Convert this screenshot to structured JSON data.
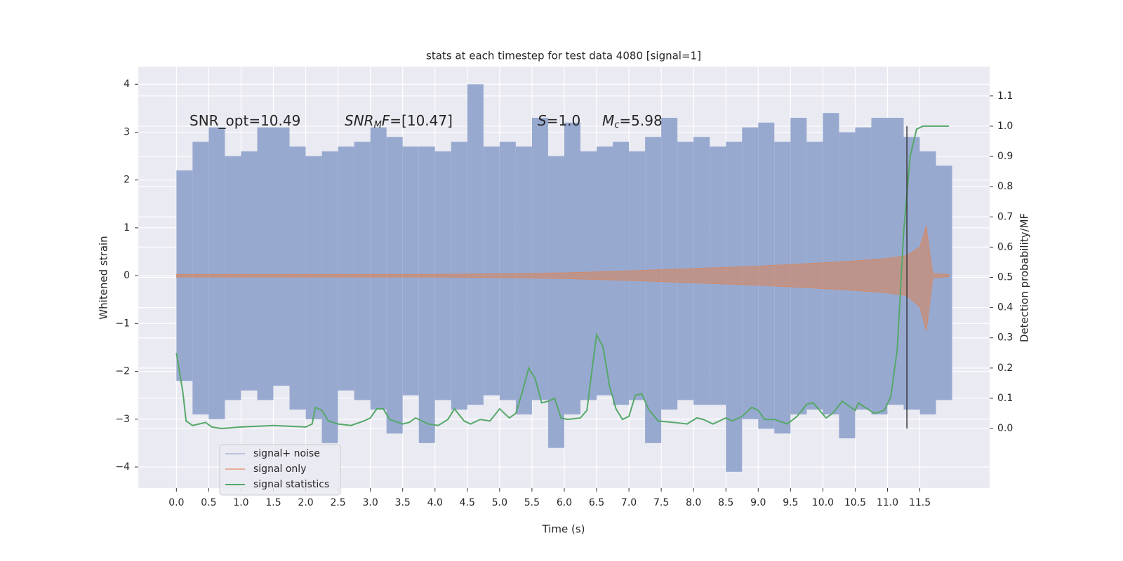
{
  "chart_data": {
    "type": "line",
    "title": "stats at each timestep for test data 4080 [signal=1]",
    "xlabel": "Time (s)",
    "ylabel": "Whitened strain",
    "y2label": "Detection probability/MF",
    "xlim": [
      -0.59,
      12.58
    ],
    "ylim": [
      -4.44,
      4.37
    ],
    "y2lim": [
      -0.197,
      1.197
    ],
    "xticks": [
      {
        "value": 0,
        "label": "0.0"
      },
      0.5,
      {
        "value": 1,
        "label": "1.0"
      },
      1.5,
      {
        "value": 2,
        "label": "2.0"
      },
      2.5,
      {
        "value": 3,
        "label": "3.0"
      },
      3.5,
      {
        "value": 4,
        "label": "4.0"
      },
      4.5,
      {
        "value": 5,
        "label": "5.0"
      },
      5.5,
      {
        "value": 6,
        "label": "6.0"
      },
      6.5,
      {
        "value": 7,
        "label": "7.0"
      },
      7.5,
      {
        "value": 8,
        "label": "8.0"
      },
      8.5,
      {
        "value": 9,
        "label": "9.0"
      },
      9.5,
      {
        "value": 10,
        "label": "10.0"
      },
      10.5,
      {
        "value": 11,
        "label": "11.0"
      },
      11.5
    ],
    "yticks": [
      {
        "value": -4,
        "label": "−4"
      },
      {
        "value": -3,
        "label": "−3"
      },
      {
        "value": -2,
        "label": "−2"
      },
      {
        "value": -1,
        "label": "−1"
      },
      0,
      1,
      2,
      3,
      4
    ],
    "y2ticks": [
      {
        "value": 0,
        "label": "0.0"
      },
      0.1,
      0.2,
      0.3,
      0.4,
      0.5,
      0.6,
      0.7,
      0.8,
      0.9,
      {
        "value": 1,
        "label": "1.0"
      },
      1.1
    ],
    "grid": true,
    "legend": "lower left",
    "series": [
      {
        "name": "signal+ noise",
        "kind": "band",
        "color": "#98a9d0",
        "x": [
          0.125,
          0.375,
          0.625,
          0.875,
          1.125,
          1.375,
          1.625,
          1.875,
          2.125,
          2.375,
          2.625,
          2.875,
          3.125,
          3.375,
          3.625,
          3.875,
          4.125,
          4.375,
          4.625,
          4.875,
          5.125,
          5.375,
          5.625,
          5.875,
          6.125,
          6.375,
          6.625,
          6.875,
          7.125,
          7.375,
          7.625,
          7.875,
          8.125,
          8.375,
          8.625,
          8.875,
          9.125,
          9.375,
          9.625,
          9.875,
          10.125,
          10.375,
          10.625,
          10.875,
          11.125,
          11.375,
          11.625,
          11.875
        ],
        "upper": [
          2.2,
          2.8,
          3.1,
          2.5,
          2.6,
          3.1,
          3.1,
          2.7,
          2.5,
          2.6,
          2.7,
          2.8,
          3.1,
          2.9,
          2.7,
          2.7,
          2.6,
          2.8,
          4.0,
          2.7,
          2.8,
          2.7,
          3.3,
          2.5,
          3.2,
          2.6,
          2.7,
          2.8,
          2.6,
          2.9,
          3.3,
          2.8,
          2.9,
          2.7,
          2.8,
          3.1,
          3.2,
          2.8,
          3.3,
          2.8,
          3.4,
          3.0,
          3.1,
          3.3,
          3.3,
          2.9,
          2.6,
          2.3
        ],
        "lower": [
          -2.2,
          -2.9,
          -3.0,
          -2.6,
          -2.4,
          -2.6,
          -2.3,
          -2.8,
          -3.0,
          -3.5,
          -2.4,
          -2.6,
          -2.8,
          -3.3,
          -2.5,
          -3.5,
          -2.6,
          -2.8,
          -2.7,
          -2.5,
          -2.6,
          -2.9,
          -2.6,
          -3.6,
          -2.9,
          -2.6,
          -2.5,
          -2.7,
          -2.6,
          -3.5,
          -2.8,
          -2.6,
          -2.7,
          -2.7,
          -4.1,
          -3.0,
          -3.2,
          -3.3,
          -2.9,
          -2.8,
          -2.9,
          -3.4,
          -2.8,
          -2.9,
          -2.7,
          -2.8,
          -2.9,
          -2.6
        ]
      },
      {
        "name": "signal only",
        "kind": "area",
        "color": "#dd8452",
        "x": [
          0,
          1,
          2,
          3,
          4,
          5,
          6,
          7,
          8,
          9,
          10,
          10.5,
          11,
          11.3,
          11.5,
          11.6,
          11.65,
          11.7,
          11.95
        ],
        "upper": [
          0.03,
          0.03,
          0.03,
          0.03,
          0.03,
          0.04,
          0.06,
          0.1,
          0.15,
          0.2,
          0.27,
          0.31,
          0.36,
          0.42,
          0.6,
          1.05,
          0.5,
          0.05,
          0.02
        ],
        "lower": [
          -0.03,
          -0.03,
          -0.03,
          -0.03,
          -0.03,
          -0.04,
          -0.06,
          -0.1,
          -0.15,
          -0.2,
          -0.27,
          -0.31,
          -0.36,
          -0.42,
          -0.65,
          -1.15,
          -0.6,
          -0.05,
          -0.02
        ]
      },
      {
        "name": "signal statistics",
        "kind": "line",
        "axis": "y2",
        "color": "#55a868",
        "x": [
          0,
          0.1,
          0.15,
          0.25,
          0.35,
          0.45,
          0.55,
          0.7,
          1.0,
          1.5,
          2.0,
          2.1,
          2.15,
          2.25,
          2.35,
          2.5,
          2.7,
          2.9,
          3.0,
          3.1,
          3.2,
          3.3,
          3.5,
          3.6,
          3.7,
          3.9,
          4.05,
          4.2,
          4.3,
          4.45,
          4.55,
          4.7,
          4.85,
          5.0,
          5.15,
          5.25,
          5.35,
          5.45,
          5.55,
          5.65,
          5.75,
          5.85,
          5.95,
          6.05,
          6.25,
          6.35,
          6.45,
          6.5,
          6.6,
          6.7,
          6.8,
          6.9,
          7.0,
          7.1,
          7.2,
          7.3,
          7.45,
          7.7,
          7.9,
          8.05,
          8.15,
          8.3,
          8.5,
          8.6,
          8.75,
          8.9,
          9.0,
          9.1,
          9.25,
          9.45,
          9.6,
          9.75,
          9.85,
          10.05,
          10.15,
          10.3,
          10.5,
          10.55,
          10.65,
          10.8,
          10.95,
          11.05,
          11.15,
          11.25,
          11.35,
          11.45,
          11.55,
          11.95
        ],
        "values": [
          0.25,
          0.12,
          0.025,
          0.01,
          0.015,
          0.02,
          0.005,
          0.0,
          0.005,
          0.01,
          0.005,
          0.015,
          0.07,
          0.06,
          0.025,
          0.015,
          0.01,
          0.025,
          0.035,
          0.065,
          0.065,
          0.03,
          0.015,
          0.02,
          0.035,
          0.015,
          0.01,
          0.03,
          0.065,
          0.025,
          0.015,
          0.03,
          0.025,
          0.065,
          0.035,
          0.05,
          0.12,
          0.2,
          0.165,
          0.085,
          0.09,
          0.1,
          0.035,
          0.03,
          0.035,
          0.06,
          0.23,
          0.31,
          0.27,
          0.14,
          0.065,
          0.03,
          0.04,
          0.11,
          0.115,
          0.065,
          0.025,
          0.02,
          0.015,
          0.035,
          0.03,
          0.015,
          0.035,
          0.025,
          0.04,
          0.07,
          0.06,
          0.03,
          0.03,
          0.015,
          0.04,
          0.08,
          0.085,
          0.035,
          0.05,
          0.09,
          0.06,
          0.085,
          0.07,
          0.05,
          0.06,
          0.105,
          0.26,
          0.65,
          0.9,
          0.99,
          1.0,
          1.0
        ]
      }
    ],
    "vlines": [
      {
        "x": 11.3,
        "ymin": 0,
        "ymax": 1,
        "axis": "y2",
        "color": "#333333"
      }
    ],
    "annotations": [
      [
        {
          "text": "SNR_opt=10.49"
        }
      ],
      [
        {
          "text": "SNR",
          "style": "italic"
        },
        {
          "text": "M",
          "style": "sub"
        },
        {
          "text": "F",
          "style": "italic"
        },
        {
          "text": "=[10.47]"
        }
      ],
      [
        {
          "text": "S",
          "style": "italic"
        },
        {
          "text": "=1.0"
        }
      ],
      [
        {
          "text": "M",
          "style": "italic"
        },
        {
          "text": "c",
          "style": "sub"
        },
        {
          "text": "=5.98"
        }
      ]
    ]
  }
}
